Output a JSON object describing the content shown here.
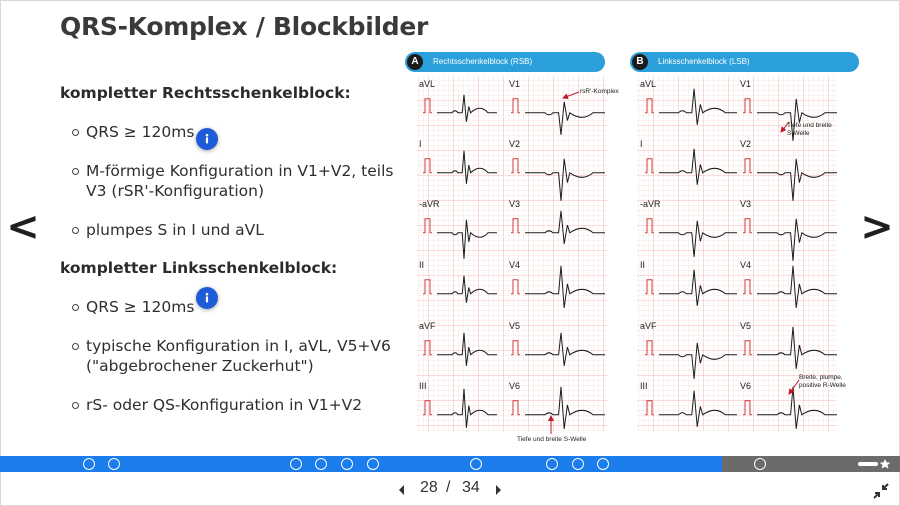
{
  "slide": {
    "title": "QRS-Komplex / Blockbilder"
  },
  "nav": {
    "prev_symbol": "<",
    "next_symbol": ">"
  },
  "sections": [
    {
      "heading": "kompletter Rechtsschenkelblock:",
      "bullets": [
        "QRS ≥ 120ms",
        "M-förmige Konfiguration in V1+V2, teils V3 (rSR'-Konfiguration)",
        "plumpes S in I und aVL"
      ]
    },
    {
      "heading": "kompletter Linksschenkelblock:",
      "bullets": [
        "QRS ≥ 120ms",
        "typische Konfiguration in I, aVL, V5+V6 (\"abgebrochener Zuckerhut\")",
        "rS- oder QS-Konfiguration in V1+V2"
      ]
    }
  ],
  "figure": {
    "panel_a": {
      "letter": "A",
      "title": "Rechtsschenkelblock (RSB)",
      "leads_left": [
        "aVL",
        "I",
        "-aVR",
        "II",
        "aVF",
        "III"
      ],
      "leads_right": [
        "V1",
        "V2",
        "V3",
        "V4",
        "V5",
        "V6"
      ],
      "annotation_top": "rsR'-Komplex",
      "annotation_bottom": "Tiefe und breite S-Welle"
    },
    "panel_b": {
      "letter": "B",
      "title": "Linksschenkelblock (LSB)",
      "leads_left": [
        "aVL",
        "I",
        "-aVR",
        "II",
        "aVF",
        "III"
      ],
      "leads_right": [
        "V1",
        "V2",
        "V3",
        "V4",
        "V5",
        "V6"
      ],
      "annotation_top_line1": "Tiefe und breite",
      "annotation_top_line2": "S-Welle",
      "annotation_bottom_line1": "Breite, plumpe,",
      "annotation_bottom_line2": "positive R-Welle"
    }
  },
  "progress": {
    "completed_fraction": 0.8
  },
  "pager": {
    "current": "28",
    "separator": "/",
    "total": "34"
  },
  "colors": {
    "accent": "#1b7cec",
    "panel_header": "#2b9fd9",
    "info_button": "#1e5bd8",
    "ekg_grid": "#f4b8b8",
    "annotation_arrow": "#c0182a"
  }
}
